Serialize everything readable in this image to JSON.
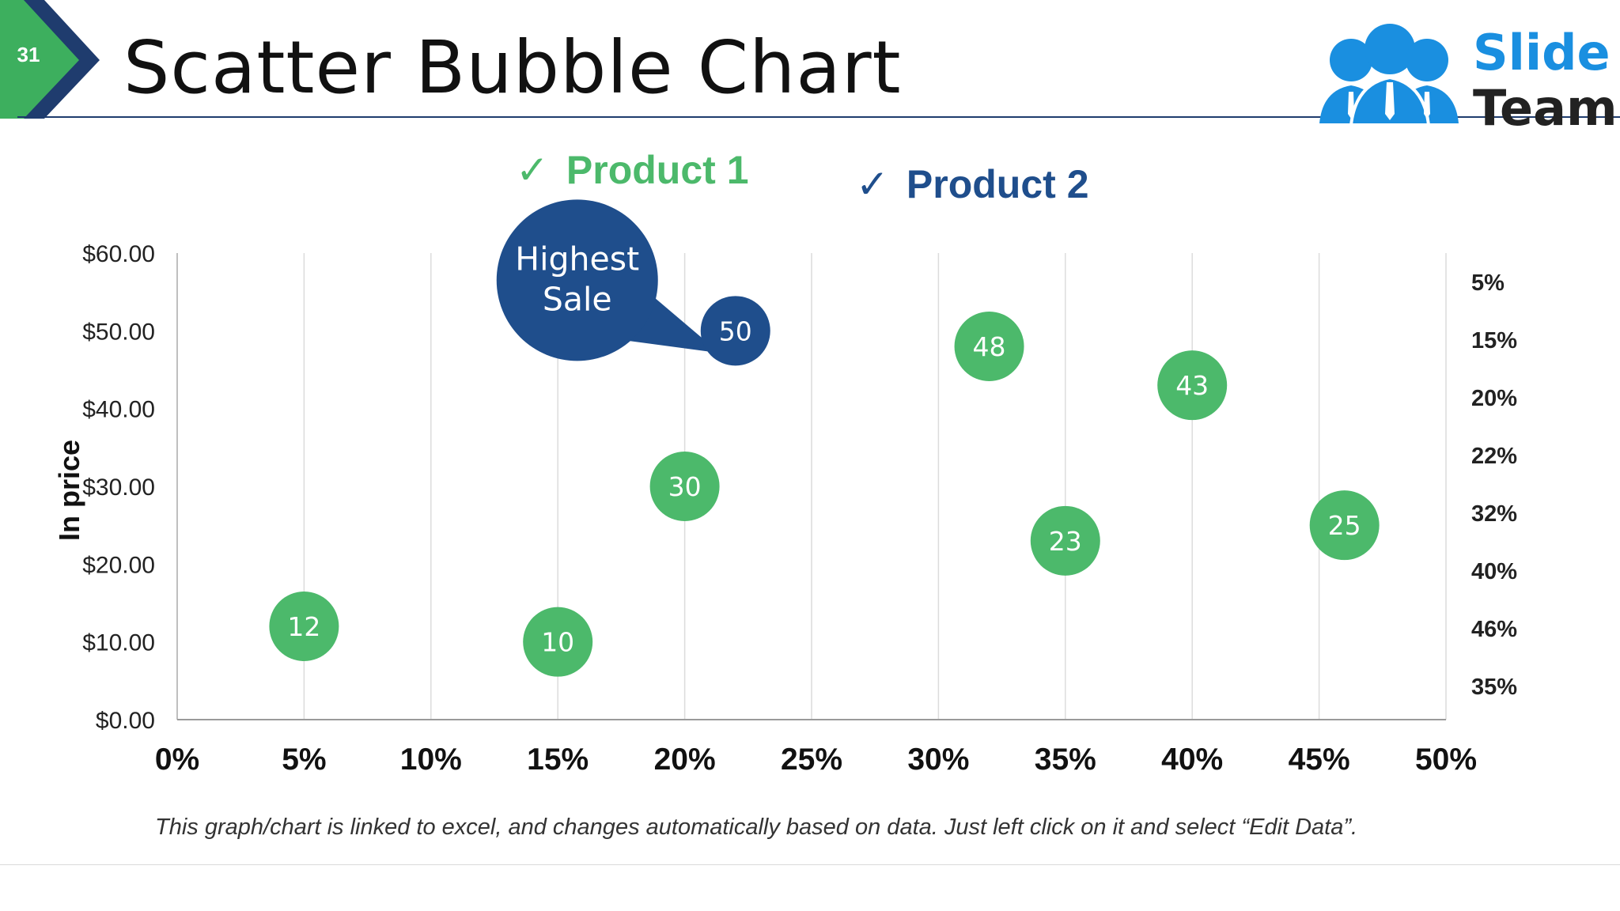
{
  "slide": {
    "number": "31",
    "title": "Scatter Bubble Chart",
    "logo": {
      "line1": "Slide",
      "line2": "Team"
    },
    "footnote": "This graph/chart is linked to excel, and changes automatically based on data. Just left click on it and select “Edit Data”."
  },
  "legend": [
    {
      "label": "Product 1",
      "color": "#4cb96b",
      "check": "✓"
    },
    {
      "label": "Product 2",
      "color": "#1f4e8c",
      "check": "✓"
    }
  ],
  "callout": {
    "line1": "Highest",
    "line2": "Sale"
  },
  "colors": {
    "product1": "#4cb96b",
    "product2": "#1f4e8c",
    "accent_green": "#3daf5e",
    "accent_navy": "#1f3c6e"
  },
  "chart_data": {
    "type": "scatter",
    "ylabel": "In price",
    "xlim": [
      0,
      50
    ],
    "ylim": [
      0,
      60
    ],
    "x_ticks": [
      "0%",
      "5%",
      "10%",
      "15%",
      "20%",
      "25%",
      "30%",
      "35%",
      "40%",
      "45%",
      "50%"
    ],
    "y_ticks": [
      "$0.00",
      "$10.00",
      "$20.00",
      "$30.00",
      "$40.00",
      "$50.00",
      "$60.00"
    ],
    "right_labels": [
      "5%",
      "15%",
      "20%",
      "22%",
      "32%",
      "40%",
      "46%",
      "35%"
    ],
    "grid": "vertical",
    "series": [
      {
        "name": "Product 1",
        "points": [
          {
            "x": 5,
            "y": 12,
            "label": "12"
          },
          {
            "x": 15,
            "y": 10,
            "label": "10"
          },
          {
            "x": 20,
            "y": 30,
            "label": "30"
          },
          {
            "x": 32,
            "y": 48,
            "label": "48"
          },
          {
            "x": 35,
            "y": 23,
            "label": "23"
          },
          {
            "x": 40,
            "y": 43,
            "label": "43"
          },
          {
            "x": 46,
            "y": 25,
            "label": "25"
          }
        ]
      },
      {
        "name": "Product 2",
        "points": [
          {
            "x": 22,
            "y": 50,
            "label": "50"
          }
        ]
      }
    ]
  }
}
